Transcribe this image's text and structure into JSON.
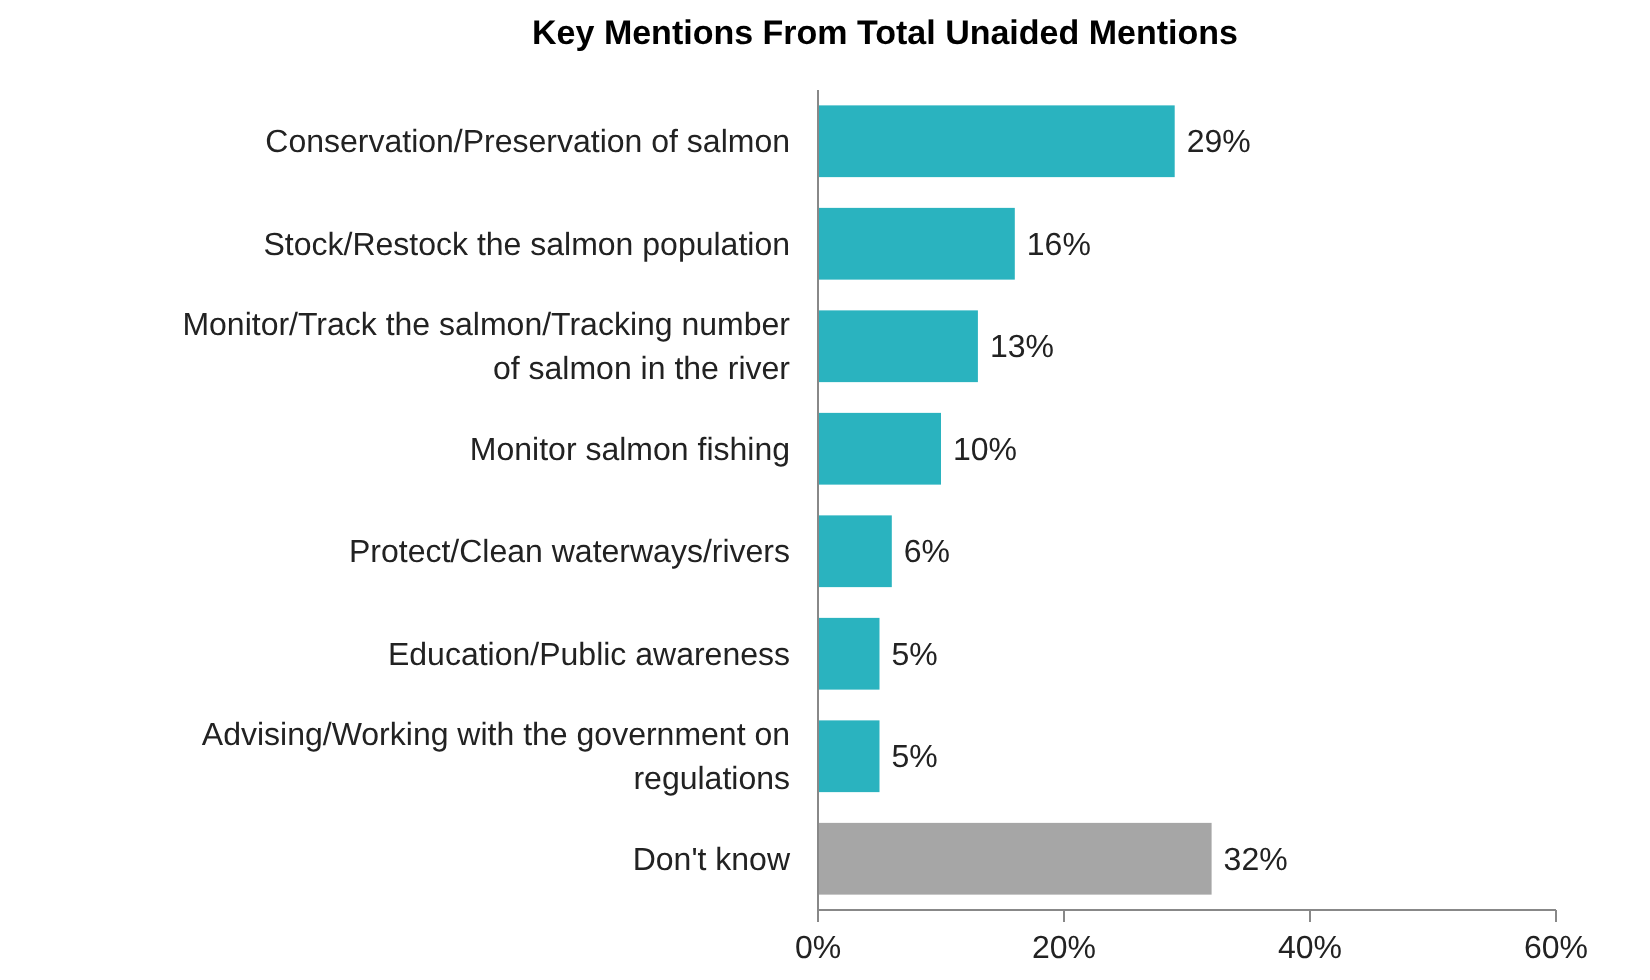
{
  "chart_data": {
    "type": "bar",
    "orientation": "horizontal",
    "title": "Key Mentions From Total Unaided Mentions",
    "categories": [
      "Conservation/Preservation of salmon",
      "Stock/Restock the salmon population",
      "Monitor/Track the salmon/Tracking number of salmon in the river",
      "Monitor salmon fishing",
      "Protect/Clean waterways/rivers",
      "Education/Public awareness",
      "Advising/Working with the government on regulations",
      "Don't know"
    ],
    "values": [
      29,
      16,
      13,
      10,
      6,
      5,
      5,
      32
    ],
    "colors": [
      "#2ab3bf",
      "#2ab3bf",
      "#2ab3bf",
      "#2ab3bf",
      "#2ab3bf",
      "#2ab3bf",
      "#2ab3bf",
      "#a6a6a6"
    ],
    "value_labels": [
      "29%",
      "16%",
      "13%",
      "10%",
      "6%",
      "5%",
      "5%",
      "32%"
    ],
    "xlim": [
      0,
      60
    ],
    "xticks": [
      {
        "value": 0,
        "label": "0%"
      },
      {
        "value": 20,
        "label": "20%"
      },
      {
        "value": 40,
        "label": "40%"
      },
      {
        "value": 60,
        "label": "60%"
      }
    ],
    "grid": false
  }
}
